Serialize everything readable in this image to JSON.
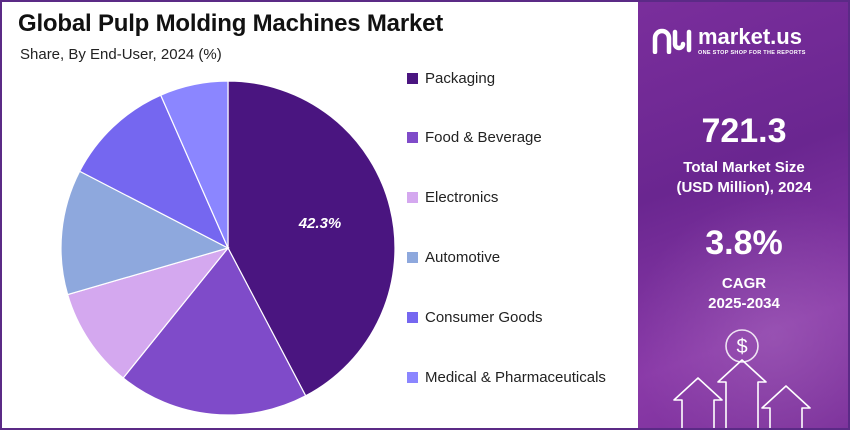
{
  "title": "Global Pulp Molding Machines Market",
  "subtitle": "Share, By End-User, 2024 (%)",
  "chart_data": {
    "type": "pie",
    "title": "Global Pulp Molding Machines Market",
    "subtitle": "Share, By End-User, 2024 (%)",
    "categories": [
      "Packaging",
      "Food & Beverage",
      "Electronics",
      "Automotive",
      "Consumer Goods",
      "Medical & Pharmaceuticals"
    ],
    "values": [
      42.3,
      18.5,
      9.7,
      12.1,
      10.8,
      6.6
    ],
    "colors": [
      "#4a1580",
      "#7f4bc9",
      "#d4a8ef",
      "#8ea8dd",
      "#7567f0",
      "#8b86ff"
    ],
    "data_labels": [
      "42.3%",
      "",
      "",
      "",
      "",
      ""
    ],
    "legend_position": "right",
    "start_angle_deg": 0,
    "direction": "clockwise"
  },
  "side_panel": {
    "brand_name": "market.us",
    "brand_tagline": "ONE STOP SHOP FOR THE REPORTS",
    "market_size_value": "721.3",
    "market_size_label_line1": "Total Market Size",
    "market_size_label_line2": "(USD Million), 2024",
    "cagr_value": "3.8%",
    "cagr_label_line1": "CAGR",
    "cagr_label_line2": "2025-2034",
    "dollar_symbol": "$"
  }
}
